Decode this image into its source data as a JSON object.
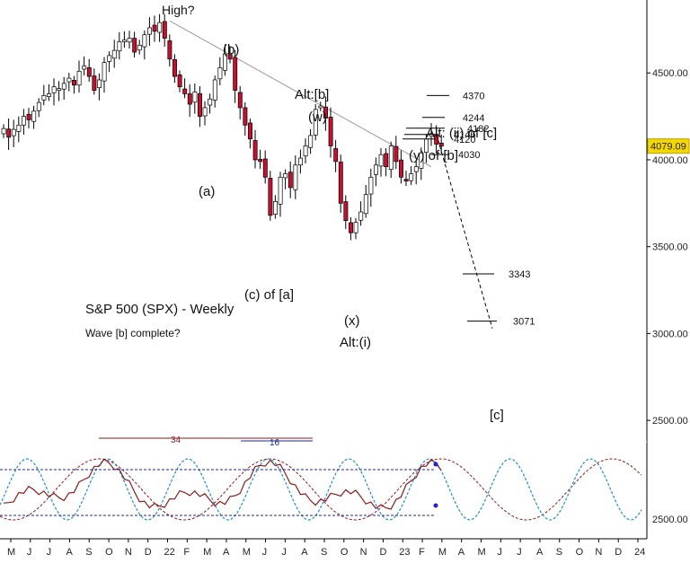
{
  "chart_data": {
    "type": "candlestick",
    "title": "S&P 500 (SPX) - Weekly",
    "subtitle": "Wave [b] complete?",
    "colors": {
      "up": "#ffffff",
      "down": "#c8102e",
      "outline": "#000000",
      "cycle_34": "#8b1c1c",
      "cycle_16": "#1e90c8",
      "marker_line": "#1f2a8c",
      "last_price_box": "#f5d800"
    },
    "price_axis": {
      "ticks": [
        4500,
        4000,
        3500,
        3000,
        2500
      ],
      "tick_labels": [
        "4500.00",
        "4000.00",
        "3500.00",
        "3000.00",
        "2500.00"
      ],
      "ylim": [
        2480,
        4920
      ]
    },
    "last_price": "4079.09",
    "time_axis": {
      "labels": [
        "M",
        "J",
        "J",
        "A",
        "S",
        "O",
        "N",
        "D",
        "22",
        "F",
        "M",
        "A",
        "M",
        "J",
        "J",
        "A",
        "S",
        "O",
        "N",
        "D",
        "23",
        "F",
        "M",
        "A",
        "M",
        "J",
        "J",
        "A",
        "S",
        "O",
        "N",
        "D",
        "24"
      ]
    },
    "weekly_closes": [
      4180,
      4130,
      4175,
      4200,
      4250,
      4230,
      4280,
      4330,
      4370,
      4380,
      4420,
      4410,
      4440,
      4470,
      4430,
      4510,
      4540,
      4480,
      4400,
      4460,
      4560,
      4600,
      4630,
      4680,
      4690,
      4700,
      4620,
      4660,
      4720,
      4760,
      4740,
      4790,
      4700,
      4580,
      4480,
      4420,
      4380,
      4320,
      4390,
      4250,
      4300,
      4350,
      4460,
      4530,
      4610,
      4580,
      4400,
      4300,
      4200,
      4120,
      4000,
      3990,
      3900,
      3680,
      3760,
      3900,
      3920,
      3840,
      3970,
      4010,
      4080,
      4140,
      4290,
      4310,
      4240,
      4080,
      3990,
      3750,
      3650,
      3580,
      3640,
      3700,
      3800,
      3900,
      3970,
      4030,
      3960,
      4080,
      3990,
      3900,
      3880,
      3920,
      3960,
      4040,
      4120,
      4150,
      4090,
      4079
    ],
    "wave_labels": [
      "High?",
      "(b)",
      "(a)",
      "(c) of [a]",
      "Alt:[b]",
      "(w)",
      "(x)",
      "Alt:(i)",
      "(y) of [b]",
      "Alt: (ii) of [c]",
      "[c]"
    ],
    "price_levels": [
      {
        "label": "4370",
        "value": 4370
      },
      {
        "label": "4244",
        "value": 4244
      },
      {
        "label": "4182",
        "value": 4182
      },
      {
        "label": "4146",
        "value": 4146
      },
      {
        "label": "4120",
        "value": 4120
      },
      {
        "label": "4030",
        "value": 4030
      },
      {
        "label": "3343",
        "value": 3343
      },
      {
        "label": "3071",
        "value": 3071
      }
    ],
    "cycles": [
      {
        "name": "34",
        "period_weeks": 34
      },
      {
        "name": "16",
        "period_weeks": 16
      }
    ]
  }
}
